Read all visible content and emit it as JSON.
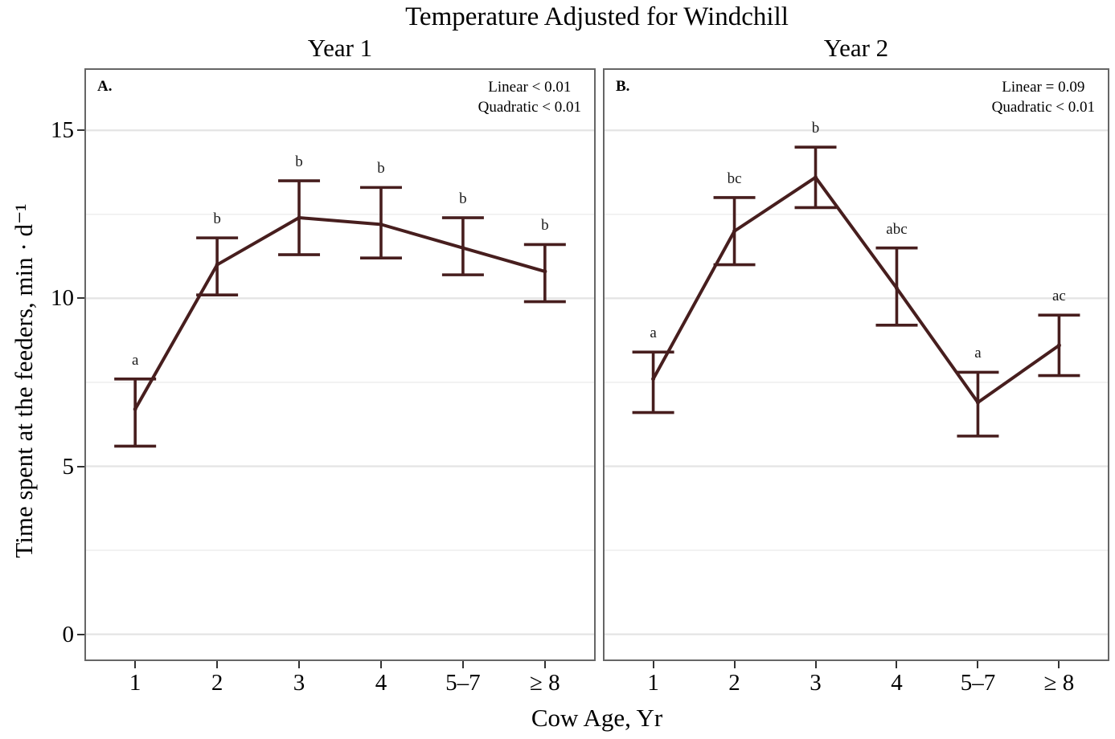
{
  "title": "Temperature Adjusted for Windchill",
  "x_axis_label": "Cow Age, Yr",
  "y_axis_label": "Time spent at the feeders, min · d⁻¹",
  "colors": {
    "line": "#471e1e",
    "grid_major": "#e4e4e4",
    "grid_minor": "#efefef",
    "panel_border": "#666666",
    "tick": "#333333",
    "text": "#000000"
  },
  "chart_data": [
    {
      "type": "line",
      "panel": "A.",
      "title": "Year 1",
      "annotations": [
        "Linear < 0.01",
        "Quadratic < 0.01"
      ],
      "categories": [
        "1",
        "2",
        "3",
        "4",
        "5–7",
        "≥ 8"
      ],
      "series": [
        {
          "name": "Time spent at the feeders",
          "values": [
            6.7,
            11.0,
            12.4,
            12.2,
            11.5,
            10.8
          ],
          "ci_low": [
            5.6,
            10.1,
            11.3,
            11.2,
            10.7,
            9.9
          ],
          "ci_high": [
            7.6,
            11.8,
            13.5,
            13.3,
            12.4,
            11.6
          ]
        }
      ],
      "point_labels": [
        "a",
        "b",
        "b",
        "b",
        "b",
        "b"
      ],
      "xlabel": "Cow Age, Yr",
      "ylabel": "Time spent at the feeders, min · d⁻¹",
      "ylim": [
        -0.75,
        16.8
      ],
      "yticks": [
        0,
        5,
        10,
        15
      ],
      "yticks_minor": [
        2.5,
        7.5,
        12.5
      ],
      "grid": true,
      "legend": false
    },
    {
      "type": "line",
      "panel": "B.",
      "title": "Year 2",
      "annotations": [
        "Linear = 0.09",
        "Quadratic < 0.01"
      ],
      "categories": [
        "1",
        "2",
        "3",
        "4",
        "5–7",
        "≥ 8"
      ],
      "series": [
        {
          "name": "Time spent at the feeders",
          "values": [
            7.6,
            12.0,
            13.6,
            10.3,
            6.9,
            8.6
          ],
          "ci_low": [
            6.6,
            11.0,
            12.7,
            9.2,
            5.9,
            7.7
          ],
          "ci_high": [
            8.4,
            13.0,
            14.5,
            11.5,
            7.8,
            9.5
          ]
        }
      ],
      "point_labels": [
        "a",
        "bc",
        "b",
        "abc",
        "a",
        "ac"
      ],
      "xlabel": "Cow Age, Yr",
      "ylabel": "Time spent at the feeders, min · d⁻¹",
      "ylim": [
        -0.75,
        16.8
      ],
      "yticks": [
        0,
        5,
        10,
        15
      ],
      "yticks_minor": [
        2.5,
        7.5,
        12.5
      ],
      "grid": true,
      "legend": false
    }
  ]
}
